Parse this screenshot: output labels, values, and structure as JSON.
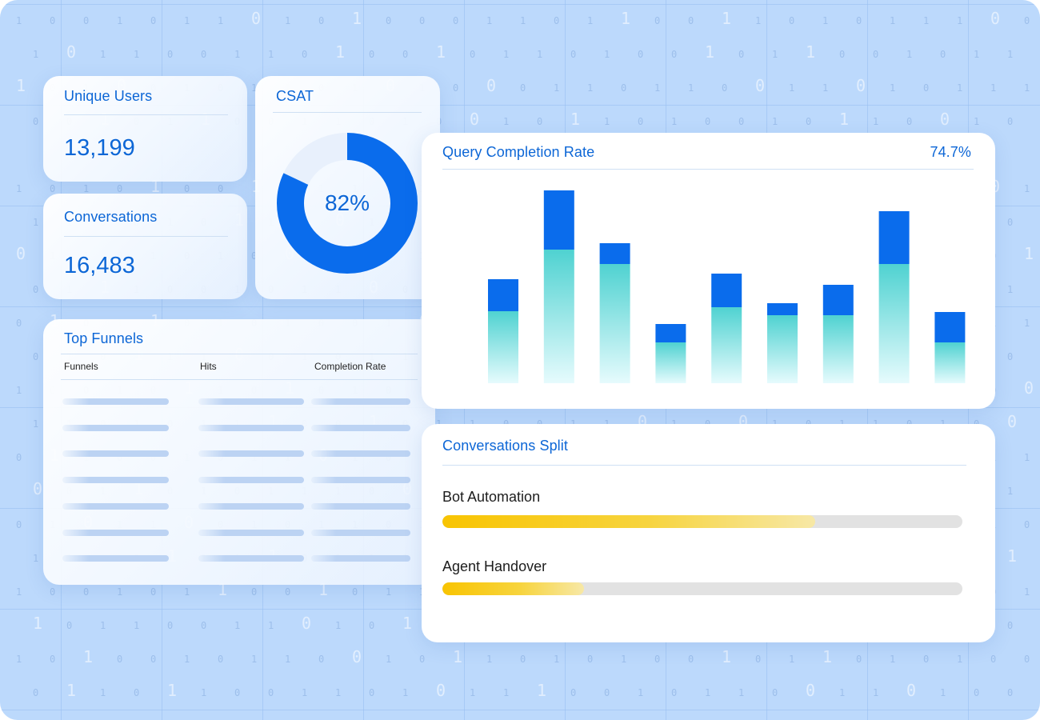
{
  "unique_users": {
    "title": "Unique Users",
    "value": "13,199"
  },
  "conversations": {
    "title": "Conversations",
    "value": "16,483"
  },
  "csat": {
    "title": "CSAT",
    "value_label": "82%",
    "percent": 82,
    "color": "#0a6cec"
  },
  "top_funnels": {
    "title": "Top Funnels",
    "columns": [
      "Funnels",
      "Hits",
      "Completion Rate"
    ],
    "row_count": 7
  },
  "query_completion": {
    "title": "Query Completion Rate",
    "value": "74.7%",
    "colors": {
      "top": "#0a6cec",
      "bottom_start": "#4fd2d1",
      "bottom_end": "#e6fbfd"
    }
  },
  "chart_data": {
    "type": "bar",
    "stacked": true,
    "categories": [
      "",
      "",
      "",
      "",
      "",
      "",
      "",
      "",
      ""
    ],
    "series": [
      {
        "values": [
          90,
          167,
          149,
          51,
          95,
          85,
          85,
          149,
          51
        ]
      },
      {
        "values": [
          40,
          74,
          26,
          23,
          42,
          15,
          38,
          66,
          38
        ]
      }
    ],
    "ylim": [
      0,
      250
    ]
  },
  "conversations_split": {
    "title": "Conversations Split",
    "items": [
      {
        "label": "Bot Automation",
        "fraction": 0.717
      },
      {
        "label": "Agent Handover",
        "fraction": 0.272
      }
    ]
  },
  "background_digits": "1001011010100011011001101011100101100110100101101001011001011010"
}
